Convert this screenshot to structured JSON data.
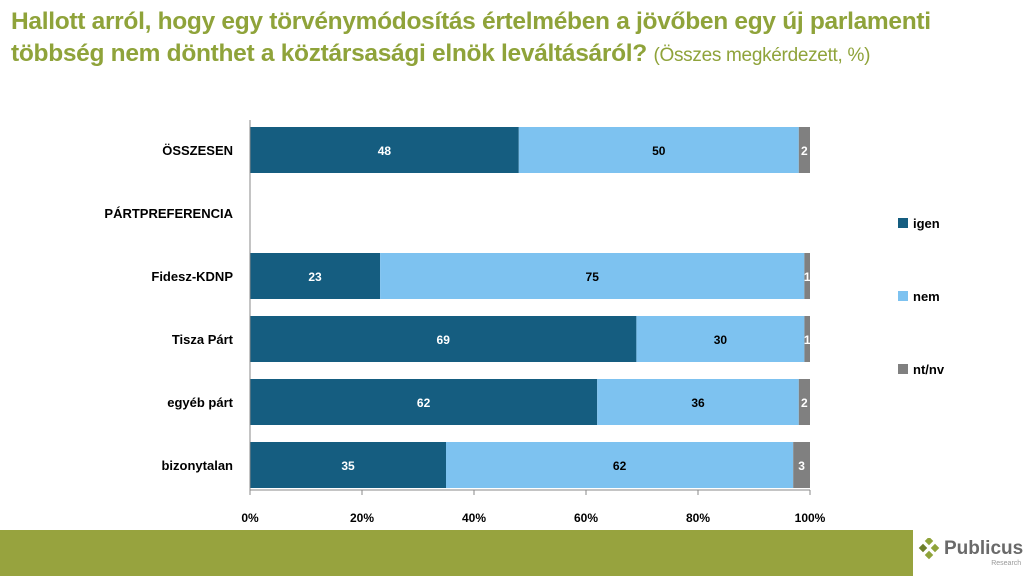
{
  "title": {
    "main": "Hallott arról, hogy egy törvénymódosítás értelmében a jövőben egy új parlamenti többség nem dönthet a köztársasági elnök leváltásáról?",
    "sub": "(Összes megkérdezett, %)"
  },
  "logo": {
    "name": "Publicus",
    "tagline": "Research"
  },
  "chart_data": {
    "type": "bar",
    "orientation": "horizontal-stacked-100",
    "categories": [
      "ÖSSZESEN",
      "PÁRTPREFERENCIA",
      "Fidesz-KDNP",
      "Tisza Párt",
      "egyéb párt",
      "bizonytalan"
    ],
    "series": [
      {
        "name": "igen",
        "color": "#155D80",
        "values": [
          48,
          null,
          23,
          69,
          62,
          35
        ]
      },
      {
        "name": "nem",
        "color": "#7DC2F0",
        "values": [
          50,
          null,
          75,
          30,
          36,
          62
        ]
      },
      {
        "name": "nt/nv",
        "color": "#808080",
        "values": [
          2,
          null,
          1,
          1,
          2,
          3
        ]
      }
    ],
    "xticks": [
      "0%",
      "20%",
      "40%",
      "60%",
      "80%",
      "100%"
    ],
    "xlim": [
      0,
      100
    ],
    "legend": "right",
    "grid": false
  }
}
